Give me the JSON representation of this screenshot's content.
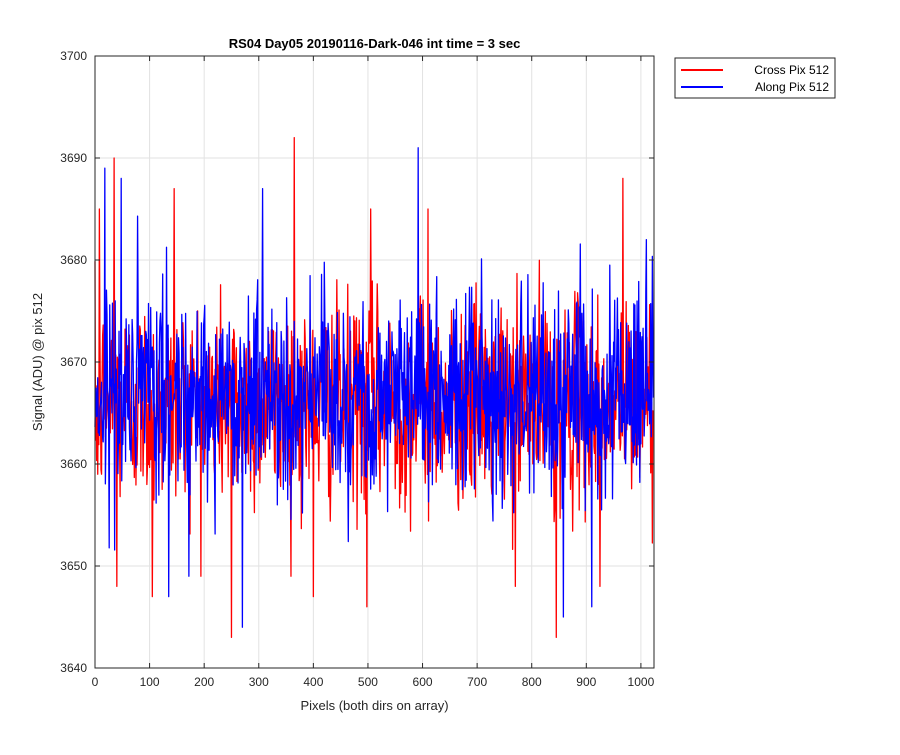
{
  "chart_data": {
    "type": "line",
    "title": "RS04 Day05 20190116-Dark-046 int time = 3 sec",
    "xlabel": "Pixels (both dirs on array)",
    "ylabel": "Signal (ADU) @ pix 512",
    "xlim": [
      0,
      1024
    ],
    "ylim": [
      3640,
      3700
    ],
    "xticks": [
      0,
      100,
      200,
      300,
      400,
      500,
      600,
      700,
      800,
      900,
      1000
    ],
    "yticks": [
      3640,
      3650,
      3660,
      3670,
      3680,
      3690,
      3700
    ],
    "grid": true,
    "legend_position": "outside top-right",
    "noise_model": {
      "n_points": 1024,
      "step": 1
    },
    "series": [
      {
        "name": "Cross Pix 512",
        "color": "#ff0000",
        "mean": 3666,
        "spread": 5,
        "extremes": [
          {
            "x": 5,
            "y": 3659
          },
          {
            "x": 8,
            "y": 3685
          },
          {
            "x": 35,
            "y": 3690
          },
          {
            "x": 40,
            "y": 3648
          },
          {
            "x": 145,
            "y": 3687
          },
          {
            "x": 105,
            "y": 3647
          },
          {
            "x": 250,
            "y": 3643
          },
          {
            "x": 365,
            "y": 3692
          },
          {
            "x": 400,
            "y": 3647
          },
          {
            "x": 498,
            "y": 3646
          },
          {
            "x": 505,
            "y": 3685
          },
          {
            "x": 610,
            "y": 3685
          },
          {
            "x": 770,
            "y": 3648
          },
          {
            "x": 845,
            "y": 3643
          },
          {
            "x": 967,
            "y": 3688
          },
          {
            "x": 925,
            "y": 3648
          }
        ]
      },
      {
        "name": "Along Pix 512",
        "color": "#0000ff",
        "mean": 3667,
        "spread": 5,
        "extremes": [
          {
            "x": 18,
            "y": 3689
          },
          {
            "x": 48,
            "y": 3688
          },
          {
            "x": 135,
            "y": 3647
          },
          {
            "x": 270,
            "y": 3644
          },
          {
            "x": 307,
            "y": 3687
          },
          {
            "x": 592,
            "y": 3691
          },
          {
            "x": 858,
            "y": 3645
          },
          {
            "x": 910,
            "y": 3646
          },
          {
            "x": 1010,
            "y": 3682
          }
        ]
      }
    ]
  }
}
